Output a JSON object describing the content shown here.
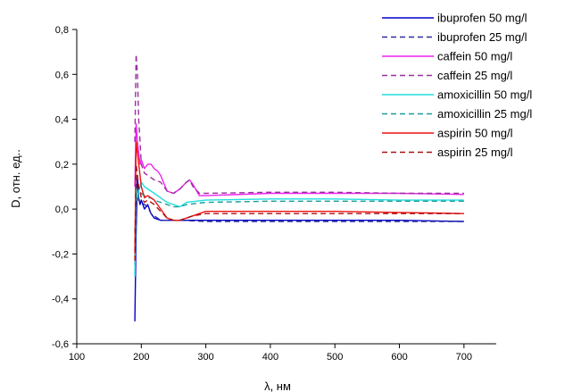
{
  "chart_data": {
    "type": "line",
    "xlabel": "λ, нм",
    "ylabel": "D, отн. ед..",
    "xlim": [
      100,
      750
    ],
    "ylim": [
      -0.6,
      0.8
    ],
    "xticks": [
      100,
      200,
      300,
      400,
      500,
      600,
      700
    ],
    "yticks": [
      -0.6,
      -0.4,
      -0.2,
      0.0,
      0.2,
      0.4,
      0.6,
      0.8
    ],
    "xtick_labels": [
      "100",
      "200",
      "300",
      "400",
      "500",
      "600",
      "700"
    ],
    "ytick_labels": [
      "-0,6",
      "-0,4",
      "-0,2",
      "0,0",
      "0,2",
      "0,4",
      "0,6",
      "0,8"
    ],
    "grid": false,
    "legend_position": "top-right",
    "series": [
      {
        "name": "ibuprofen 50 mg/l",
        "color": "#0000cc",
        "dash": "solid",
        "x": [
          190,
          192,
          194,
          196,
          198,
          200,
          205,
          210,
          215,
          220,
          230,
          240,
          260,
          300,
          400,
          500,
          600,
          700
        ],
        "y": [
          -0.5,
          -0.1,
          0.15,
          0.05,
          0.02,
          0.04,
          0.0,
          0.02,
          -0.02,
          -0.04,
          -0.05,
          -0.05,
          -0.05,
          -0.05,
          -0.05,
          -0.05,
          -0.05,
          -0.055
        ]
      },
      {
        "name": "ibuprofen 25 mg/l",
        "color": "#2c2c9c",
        "dash": "dashed",
        "x": [
          190,
          192,
          194,
          196,
          198,
          200,
          205,
          210,
          215,
          220,
          230,
          240,
          260,
          300,
          400,
          500,
          600,
          700
        ],
        "y": [
          -0.25,
          0.05,
          0.1,
          0.04,
          0.03,
          0.03,
          0.02,
          0.01,
          -0.02,
          -0.03,
          -0.05,
          -0.05,
          -0.05,
          -0.055,
          -0.055,
          -0.055,
          -0.055,
          -0.055
        ]
      },
      {
        "name": "caffein 50 mg/l",
        "color": "#ee22ee",
        "dash": "solid",
        "x": [
          190,
          192,
          194,
          196,
          198,
          200,
          205,
          210,
          215,
          220,
          225,
          230,
          240,
          250,
          260,
          270,
          275,
          280,
          290,
          300,
          400,
          500,
          600,
          700
        ],
        "y": [
          0.1,
          0.38,
          0.3,
          0.25,
          0.2,
          0.22,
          0.18,
          0.2,
          0.2,
          0.18,
          0.17,
          0.15,
          0.08,
          0.07,
          0.09,
          0.12,
          0.13,
          0.11,
          0.06,
          0.06,
          0.07,
          0.07,
          0.07,
          0.065
        ]
      },
      {
        "name": "caffein 25 mg/l",
        "color": "#9b2ea0",
        "dash": "dashed",
        "x": [
          190,
          192,
          194,
          196,
          198,
          200,
          205,
          210,
          215,
          220,
          230,
          240,
          250,
          260,
          270,
          275,
          280,
          290,
          300,
          400,
          500,
          600,
          700
        ],
        "y": [
          0.3,
          0.69,
          0.6,
          0.4,
          0.3,
          0.2,
          0.16,
          0.15,
          0.14,
          0.13,
          0.12,
          0.08,
          0.07,
          0.09,
          0.12,
          0.13,
          0.1,
          0.07,
          0.07,
          0.075,
          0.075,
          0.07,
          0.07
        ]
      },
      {
        "name": "amoxicillin 50 mg/l",
        "color": "#22dddd",
        "dash": "solid",
        "x": [
          190,
          192,
          194,
          196,
          198,
          200,
          205,
          210,
          215,
          220,
          230,
          240,
          250,
          260,
          270,
          300,
          400,
          500,
          600,
          700
        ],
        "y": [
          -0.3,
          0.1,
          0.05,
          0.08,
          0.1,
          0.12,
          0.1,
          0.09,
          0.08,
          0.07,
          0.05,
          0.03,
          0.02,
          0.01,
          0.03,
          0.04,
          0.045,
          0.045,
          0.04,
          0.04
        ]
      },
      {
        "name": "amoxicillin 25 mg/l",
        "color": "#1a9c9c",
        "dash": "dashed",
        "x": [
          190,
          192,
          194,
          196,
          198,
          200,
          205,
          210,
          215,
          220,
          230,
          240,
          250,
          260,
          270,
          300,
          400,
          500,
          600,
          700
        ],
        "y": [
          -0.1,
          0.05,
          0.04,
          0.06,
          0.06,
          0.07,
          0.06,
          0.05,
          0.05,
          0.04,
          0.03,
          0.02,
          0.01,
          0.01,
          0.02,
          0.03,
          0.035,
          0.035,
          0.035,
          0.035
        ]
      },
      {
        "name": "aspirin 50 mg/l",
        "color": "#ee1111",
        "dash": "solid",
        "x": [
          190,
          192,
          194,
          196,
          198,
          200,
          205,
          210,
          215,
          220,
          230,
          240,
          250,
          260,
          270,
          280,
          300,
          400,
          500,
          600,
          700
        ],
        "y": [
          -0.2,
          0.3,
          0.25,
          0.2,
          0.15,
          0.1,
          0.05,
          0.06,
          0.05,
          0.04,
          0.0,
          -0.04,
          -0.05,
          -0.05,
          -0.04,
          -0.03,
          -0.01,
          -0.01,
          -0.01,
          -0.015,
          -0.02
        ]
      },
      {
        "name": "aspirin 25 mg/l",
        "color": "#aa1111",
        "dash": "dashed",
        "x": [
          190,
          192,
          194,
          196,
          198,
          200,
          205,
          210,
          215,
          220,
          230,
          240,
          250,
          260,
          270,
          280,
          300,
          400,
          500,
          600,
          700
        ],
        "y": [
          -0.23,
          0.2,
          0.15,
          0.1,
          0.08,
          0.05,
          0.03,
          0.04,
          0.03,
          0.02,
          -0.01,
          -0.04,
          -0.05,
          -0.05,
          -0.04,
          -0.03,
          -0.02,
          -0.02,
          -0.02,
          -0.02,
          -0.02
        ]
      }
    ]
  }
}
